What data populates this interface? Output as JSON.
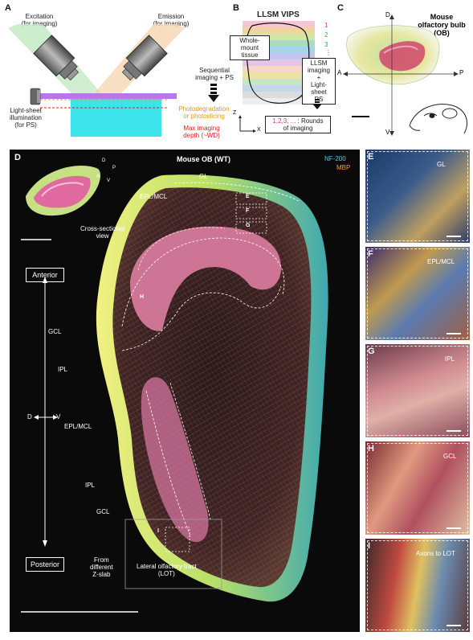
{
  "panel_a": {
    "letter": "A",
    "excitation": [
      "Excitation",
      "(for imaging)"
    ],
    "emission": [
      "Emission",
      "(for imaging)"
    ],
    "sequential": [
      "Sequential",
      "imaging + PS"
    ],
    "lightsheet": [
      "Light-sheet",
      "illumination",
      "(for PS)"
    ],
    "photodeg": [
      "Photodegradation",
      "or photoslicing"
    ],
    "maxdepth": [
      "Max imaging",
      "depth (~WD)"
    ]
  },
  "panel_b": {
    "letter": "B",
    "title": "LLSM VIPS",
    "wholemount": [
      "Whole-mount",
      "tissue"
    ],
    "rounds": [
      "1",
      "2",
      "3",
      "⋮"
    ],
    "llsm": [
      "LLSM",
      "imaging",
      "+",
      "Light-sheet",
      "PS"
    ],
    "axis_z": "Z",
    "axis_x": "X",
    "legend_nums": "1,2,3, ...",
    "legend_text": ": Rounds",
    "legend_text2": "of imaging"
  },
  "panel_c": {
    "letter": "C",
    "title": [
      "Mouse",
      "olfactory bulb",
      "(OB)"
    ],
    "axis_d": "D",
    "axis_v": "V",
    "axis_a": "A",
    "axis_p": "P"
  },
  "panel_d": {
    "letter": "D",
    "title": "Mouse OB (WT)",
    "nf200": "NF-200",
    "mbp": "MBP",
    "cross_sectional": [
      "Cross-sectional",
      "view"
    ],
    "mini_axis": {
      "d": "D",
      "p": "P",
      "a": "A",
      "v": "V"
    },
    "anterior": "Anterior",
    "posterior": "Posterior",
    "dv_d": "D",
    "dv_v": "V",
    "layers": {
      "gl": "GL",
      "epl_mcl_top": "EPL/MCL",
      "gcl_left": "GCL",
      "ipl_left": "IPL",
      "epl_mcl_mid": "EPL/MCL",
      "ipl_low": "IPL",
      "gcl_low": "GCL"
    },
    "roi_e": "E",
    "roi_f": "F",
    "roi_g": "G",
    "roi_h": "H",
    "roi_i": "I",
    "from_slab": [
      "From",
      "different",
      "Z-slab"
    ],
    "lot": [
      "Lateral olfactory tract",
      "(LOT)"
    ]
  },
  "insets": [
    {
      "letter": "E",
      "label": "GL"
    },
    {
      "letter": "F",
      "label": "EPL/MCL"
    },
    {
      "letter": "G",
      "label": "IPL"
    },
    {
      "letter": "H",
      "label": "GCL"
    },
    {
      "letter": "I",
      "label": "Axons to LOT"
    }
  ],
  "colors": {
    "nf200": "#4ecdf0",
    "mbp": "#f0a030",
    "photodeg": "#e39a1c",
    "maxdepth": "#e0201b",
    "round1": "#e0307a",
    "round2": "#3fae3f",
    "round3": "#2a9ad4"
  }
}
